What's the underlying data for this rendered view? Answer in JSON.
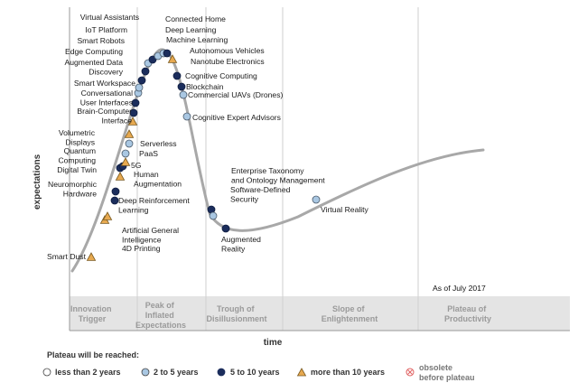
{
  "chart_data": {
    "type": "hype-cycle",
    "ylabel": "expectations",
    "xlabel": "time",
    "as_of": "As of July 2017",
    "phases": [
      {
        "id": "innovation",
        "lines": [
          "Innovation",
          "Trigger"
        ]
      },
      {
        "id": "peak",
        "lines": [
          "Peak of",
          "Inflated",
          "Expectations"
        ]
      },
      {
        "id": "trough",
        "lines": [
          "Trough of",
          "Disillusionment"
        ]
      },
      {
        "id": "slope",
        "lines": [
          "Slope of",
          "Enlightenment"
        ]
      },
      {
        "id": "plateau",
        "lines": [
          "Plateau of",
          "Productivity"
        ]
      }
    ],
    "legend": {
      "title": "Plateau will be reached:",
      "items": [
        {
          "key": "lt2",
          "label": "less than 2 years",
          "color": "#ffffff"
        },
        {
          "key": "2to5",
          "label": "2 to 5 years",
          "color": "#a9c7e2"
        },
        {
          "key": "5to10",
          "label": "5 to 10 years",
          "color": "#1b2d5c"
        },
        {
          "key": "gt10",
          "label": "more than 10 years",
          "color": "#e7a950"
        },
        {
          "key": "obsolete",
          "label_lines": [
            "obsolete",
            "before plateau"
          ],
          "color": "#e06060"
        }
      ]
    },
    "technologies": [
      {
        "name": "Smart Dust",
        "lines": [
          "Smart Dust"
        ],
        "category": "gt10"
      },
      {
        "name": "4D Printing",
        "lines": [
          "4D Printing"
        ],
        "category": "gt10"
      },
      {
        "name": "Artificial General Intelligence",
        "lines": [
          "Artificial General",
          "Intelligence"
        ],
        "category": "gt10"
      },
      {
        "name": "Deep Reinforcement Learning",
        "lines": [
          "Deep Reinforcement",
          "Learning"
        ],
        "category": "5to10"
      },
      {
        "name": "Neuromorphic Hardware",
        "lines": [
          "Neuromorphic",
          "Hardware"
        ],
        "category": "5to10"
      },
      {
        "name": "Human Augmentation",
        "lines": [
          "Human",
          "Augmentation"
        ],
        "category": "gt10"
      },
      {
        "name": "Digital Twin",
        "lines": [
          "Digital Twin"
        ],
        "category": "5to10"
      },
      {
        "name": "5G",
        "lines": [
          "5G"
        ],
        "category": "5to10"
      },
      {
        "name": "Quantum Computing",
        "lines": [
          "Quantum",
          "Computing"
        ],
        "category": "gt10"
      },
      {
        "name": "PaaS",
        "lines": [
          "PaaS"
        ],
        "category": "2to5"
      },
      {
        "name": "Serverless PaaS",
        "lines": [
          "Serverless"
        ],
        "category": "2to5"
      },
      {
        "name": "Volumetric Displays",
        "lines": [
          "Volumetric",
          "Displays"
        ],
        "category": "gt10"
      },
      {
        "name": "Brain-Computer Interface",
        "lines": [
          "Brain-Computer",
          "Interface"
        ],
        "category": "gt10"
      },
      {
        "name": "Conversational User Interfaces",
        "lines": [
          "Conversational",
          "User Interfaces"
        ],
        "category": "5to10"
      },
      {
        "name": "Smart Workspace",
        "lines": [
          "Smart Workspace"
        ],
        "category": "5to10"
      },
      {
        "name": "Augmented Data Discovery",
        "lines": [
          "Augmented Data",
          "Discovery"
        ],
        "category": "2to5"
      },
      {
        "name": "Edge Computing",
        "lines": [
          "Edge Computing"
        ],
        "category": "2to5"
      },
      {
        "name": "Smart Robots",
        "lines": [
          "Smart Robots"
        ],
        "category": "5to10"
      },
      {
        "name": "IoT Platform",
        "lines": [
          "IoT Platform"
        ],
        "category": "5to10"
      },
      {
        "name": "Virtual Assistants",
        "lines": [
          "Virtual Assistants"
        ],
        "category": "2to5"
      },
      {
        "name": "Connected Home",
        "lines": [
          "Connected Home"
        ],
        "category": "5to10"
      },
      {
        "name": "Deep Learning",
        "lines": [
          "Deep Learning"
        ],
        "category": "2to5"
      },
      {
        "name": "Machine Learning",
        "lines": [
          "Machine Learning"
        ],
        "category": "2to5"
      },
      {
        "name": "Autonomous Vehicles",
        "lines": [
          "Autonomous Vehicles"
        ],
        "category": "5to10"
      },
      {
        "name": "Nanotube Electronics",
        "lines": [
          "Nanotube Electronics"
        ],
        "category": "gt10"
      },
      {
        "name": "Cognitive Computing",
        "lines": [
          "Cognitive Computing"
        ],
        "category": "5to10"
      },
      {
        "name": "Blockchain",
        "lines": [
          "Blockchain"
        ],
        "category": "5to10"
      },
      {
        "name": "Commercial UAVs (Drones)",
        "lines": [
          "Commercial UAVs (Drones)"
        ],
        "category": "2to5"
      },
      {
        "name": "Cognitive Expert Advisors",
        "lines": [
          "Cognitive Expert Advisors"
        ],
        "category": "2to5"
      },
      {
        "name": "Enterprise Taxonomy and Ontology Management",
        "lines": [
          "Enterprise Taxonomy",
          "and Ontology Management"
        ],
        "category": "5to10"
      },
      {
        "name": "Software-Defined Security",
        "lines": [
          "Software-Defined",
          "Security"
        ],
        "category": "2to5"
      },
      {
        "name": "Augmented Reality",
        "lines": [
          "Augmented",
          "Reality"
        ],
        "category": "5to10"
      },
      {
        "name": "Virtual Reality",
        "lines": [
          "Virtual Reality"
        ],
        "category": "2to5"
      }
    ]
  }
}
